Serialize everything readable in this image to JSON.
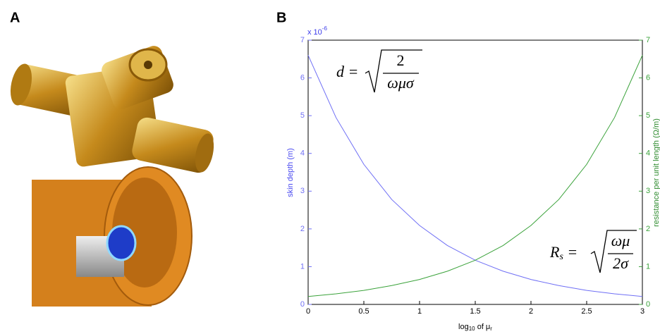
{
  "panel_labels": [
    "A",
    "B"
  ],
  "chart_data": {
    "type": "line",
    "multiplier": [
      "x 10",
      "-6"
    ],
    "ylabel": "skin depth (m)",
    "y2label": "resistance per unit length (Ω/m)",
    "xlabel": [
      "log",
      "10",
      " of μ",
      "r"
    ],
    "annotations": [
      {
        "lhs": "d =",
        "numerator": "2",
        "denominator": "ωμσ"
      },
      {
        "lhs": [
          "R",
          "s",
          " ="
        ],
        "numerator": "ωμ",
        "denominator": "2σ"
      }
    ],
    "x": [
      0,
      0.25,
      0.5,
      0.75,
      1,
      1.25,
      1.5,
      1.75,
      2,
      2.25,
      2.5,
      2.75,
      3
    ],
    "series": [
      {
        "name": "skin depth (m)",
        "color": "#6f6ff5",
        "values": [
          6.6,
          4.95,
          3.71,
          2.78,
          2.09,
          1.56,
          1.17,
          0.88,
          0.66,
          0.5,
          0.37,
          0.28,
          0.21
        ]
      },
      {
        "name": "resistance per unit length (Ω/m)",
        "color": "#3aa23a",
        "axis": "y2",
        "values": [
          0.21,
          0.28,
          0.37,
          0.5,
          0.66,
          0.88,
          1.17,
          1.56,
          2.09,
          2.78,
          3.71,
          4.95,
          6.6
        ]
      }
    ],
    "xlim": [
      0,
      3
    ],
    "xticks": [
      0,
      0.5,
      1,
      1.5,
      2,
      2.5,
      3
    ],
    "ylim": [
      0,
      7
    ],
    "yticks": [
      0,
      1,
      2,
      3,
      4,
      5,
      6,
      7
    ],
    "y2lim": [
      0,
      7
    ],
    "y2ticks": [
      0,
      1,
      2,
      3,
      4,
      5,
      6,
      7
    ]
  }
}
